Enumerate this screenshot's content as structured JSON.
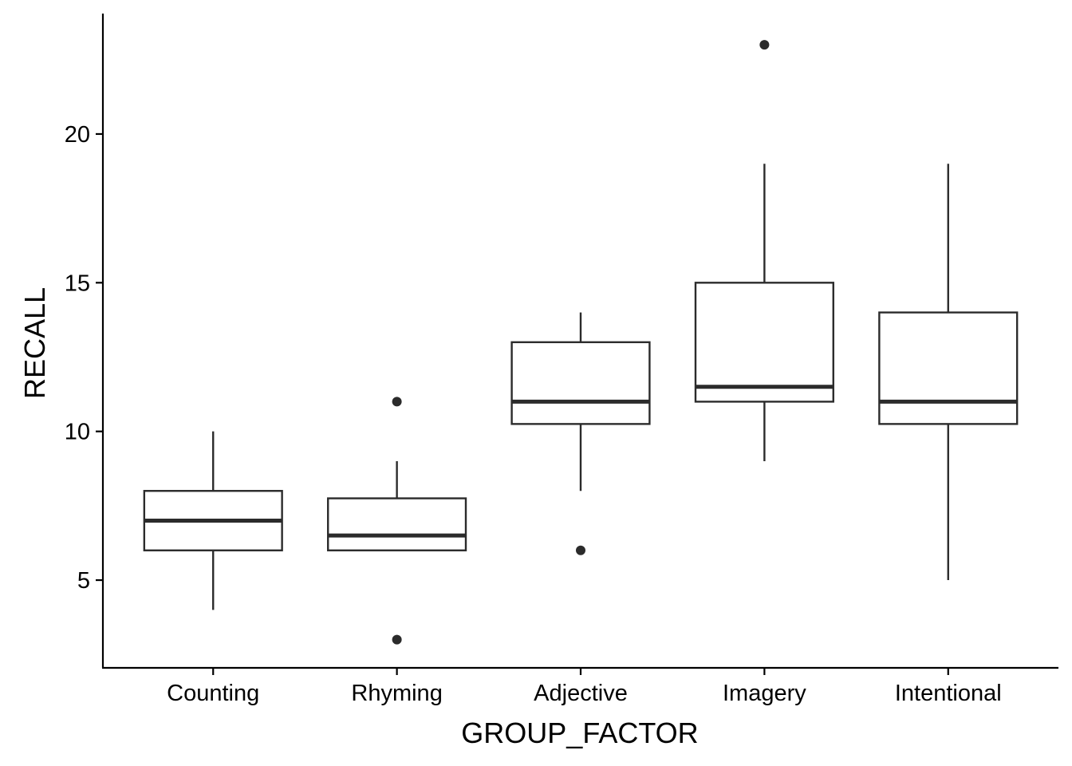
{
  "chart_data": {
    "type": "boxplot",
    "title": "",
    "xlabel": "GROUP_FACTOR",
    "ylabel": "RECALL",
    "categories": [
      "Counting",
      "Rhyming",
      "Adjective",
      "Imagery",
      "Intentional"
    ],
    "ylim": [
      2.05,
      24.05
    ],
    "yticks": [
      5,
      10,
      15,
      20
    ],
    "ytick_labels": [
      "5",
      "10",
      "15",
      "20"
    ],
    "grid": false,
    "legend": "none",
    "colors": {
      "box_stroke": "#2b2b2b",
      "box_fill": "#ffffff",
      "axis": "#000000"
    },
    "boxes": [
      {
        "category": "Counting",
        "q1": 6,
        "median": 7,
        "q3": 8,
        "whisker_low": 4,
        "whisker_high": 10,
        "outliers": []
      },
      {
        "category": "Rhyming",
        "q1": 6,
        "median": 6.5,
        "q3": 7.75,
        "whisker_low": 6,
        "whisker_high": 9,
        "outliers": [
          3,
          11
        ]
      },
      {
        "category": "Adjective",
        "q1": 10.25,
        "median": 11,
        "q3": 13,
        "whisker_low": 8,
        "whisker_high": 14,
        "outliers": [
          6
        ]
      },
      {
        "category": "Imagery",
        "q1": 11,
        "median": 11.5,
        "q3": 15,
        "whisker_low": 9,
        "whisker_high": 19,
        "outliers": [
          23
        ]
      },
      {
        "category": "Intentional",
        "q1": 10.25,
        "median": 11,
        "q3": 14,
        "whisker_low": 5,
        "whisker_high": 19,
        "outliers": []
      }
    ]
  }
}
